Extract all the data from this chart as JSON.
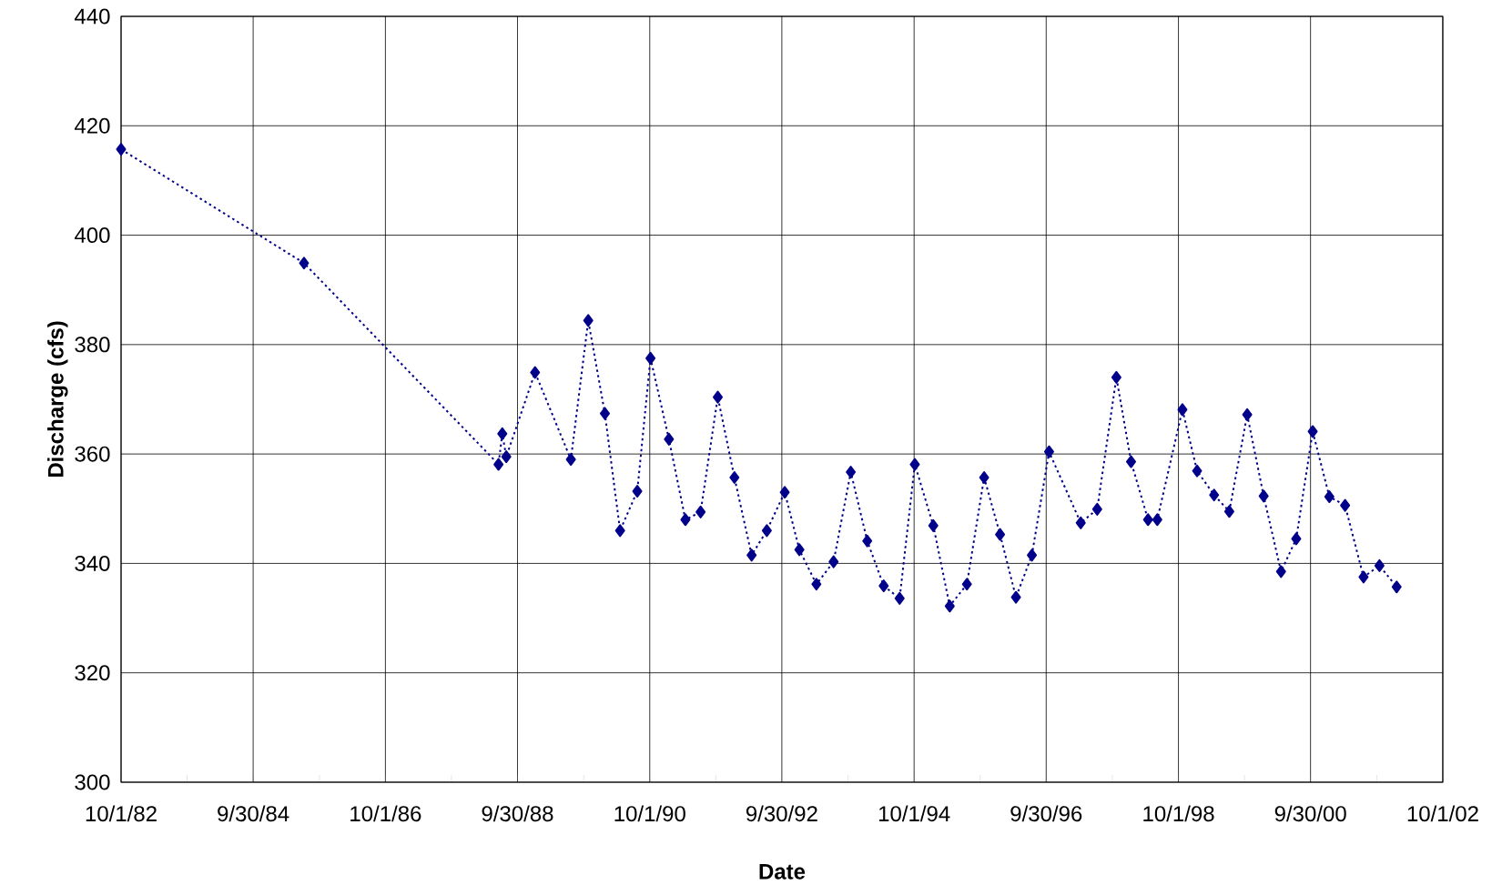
{
  "chart_data": {
    "type": "line",
    "xlabel": "Date",
    "ylabel": "Discharge (cfs)",
    "x": [
      "1982-10-01",
      "1985-07-08",
      "1988-06-17",
      "1988-07-08",
      "1988-07-30",
      "1989-01-05",
      "1989-07-22",
      "1989-10-26",
      "1990-01-26",
      "1990-04-20",
      "1990-07-24",
      "1990-10-05",
      "1991-01-15",
      "1991-04-16",
      "1991-07-09",
      "1991-10-12",
      "1992-01-12",
      "1992-04-16",
      "1992-07-09",
      "1992-10-16",
      "1993-01-05",
      "1993-04-09",
      "1993-07-13",
      "1993-10-16",
      "1994-01-15",
      "1994-04-16",
      "1994-07-13",
      "1994-10-05",
      "1995-01-15",
      "1995-04-16",
      "1995-07-20",
      "1995-10-23",
      "1996-01-19",
      "1996-04-16",
      "1996-07-13",
      "1996-10-16",
      "1997-04-09",
      "1997-07-09",
      "1997-10-23",
      "1998-01-12",
      "1998-04-16",
      "1998-06-06",
      "1998-10-23",
      "1999-01-12",
      "1999-04-16",
      "1999-07-09",
      "1999-10-16",
      "2000-01-15",
      "2000-04-20",
      "2000-07-13",
      "2000-10-12",
      "2001-01-12",
      "2001-04-09",
      "2001-07-20",
      "2001-10-16",
      "2002-01-19"
    ],
    "series": [
      {
        "color": "#00008b",
        "values": [
          415.7,
          394.9,
          358.1,
          363.7,
          359.5,
          374.9,
          359.0,
          384.4,
          367.4,
          346.0,
          353.2,
          377.5,
          362.7,
          348.0,
          349.4,
          370.4,
          355.7,
          341.5,
          346.0,
          353.0,
          342.5,
          336.2,
          340.3,
          356.7,
          344.1,
          335.9,
          333.6,
          358.1,
          346.9,
          332.2,
          336.2,
          355.7,
          345.3,
          333.8,
          341.5,
          360.4,
          347.4,
          349.9,
          374.0,
          358.6,
          348.0,
          348.0,
          368.1,
          356.9,
          352.5,
          349.5,
          367.2,
          352.3,
          338.5,
          344.5,
          364.1,
          352.2,
          350.6,
          337.5,
          339.6,
          335.7
        ]
      }
    ],
    "marker": "diamond",
    "line_style": "dotted",
    "grid": true,
    "xlim": [
      "1982-10-01",
      "2002-10-01"
    ],
    "xticks": [
      {
        "value": "1982-10-01",
        "label": "10/1/82"
      },
      {
        "value": "1983-10-01",
        "label": null
      },
      {
        "value": "1984-09-30",
        "label": "9/30/84"
      },
      {
        "value": "1985-10-01",
        "label": null
      },
      {
        "value": "1986-10-01",
        "label": "10/1/86"
      },
      {
        "value": "1987-10-01",
        "label": null
      },
      {
        "value": "1988-09-30",
        "label": "9/30/88"
      },
      {
        "value": "1989-10-01",
        "label": null
      },
      {
        "value": "1990-10-01",
        "label": "10/1/90"
      },
      {
        "value": "1991-10-01",
        "label": null
      },
      {
        "value": "1992-09-30",
        "label": "9/30/92"
      },
      {
        "value": "1993-10-01",
        "label": null
      },
      {
        "value": "1994-10-01",
        "label": "10/1/94"
      },
      {
        "value": "1995-10-01",
        "label": null
      },
      {
        "value": "1996-09-30",
        "label": "9/30/96"
      },
      {
        "value": "1997-10-01",
        "label": null
      },
      {
        "value": "1998-10-01",
        "label": "10/1/98"
      },
      {
        "value": "1999-10-01",
        "label": null
      },
      {
        "value": "2000-09-30",
        "label": "9/30/00"
      },
      {
        "value": "2001-10-01",
        "label": null
      },
      {
        "value": "2002-10-01",
        "label": "10/1/02"
      }
    ],
    "ylim": [
      300,
      440
    ],
    "yticks": [
      300,
      320,
      340,
      360,
      380,
      400,
      420,
      440
    ]
  }
}
